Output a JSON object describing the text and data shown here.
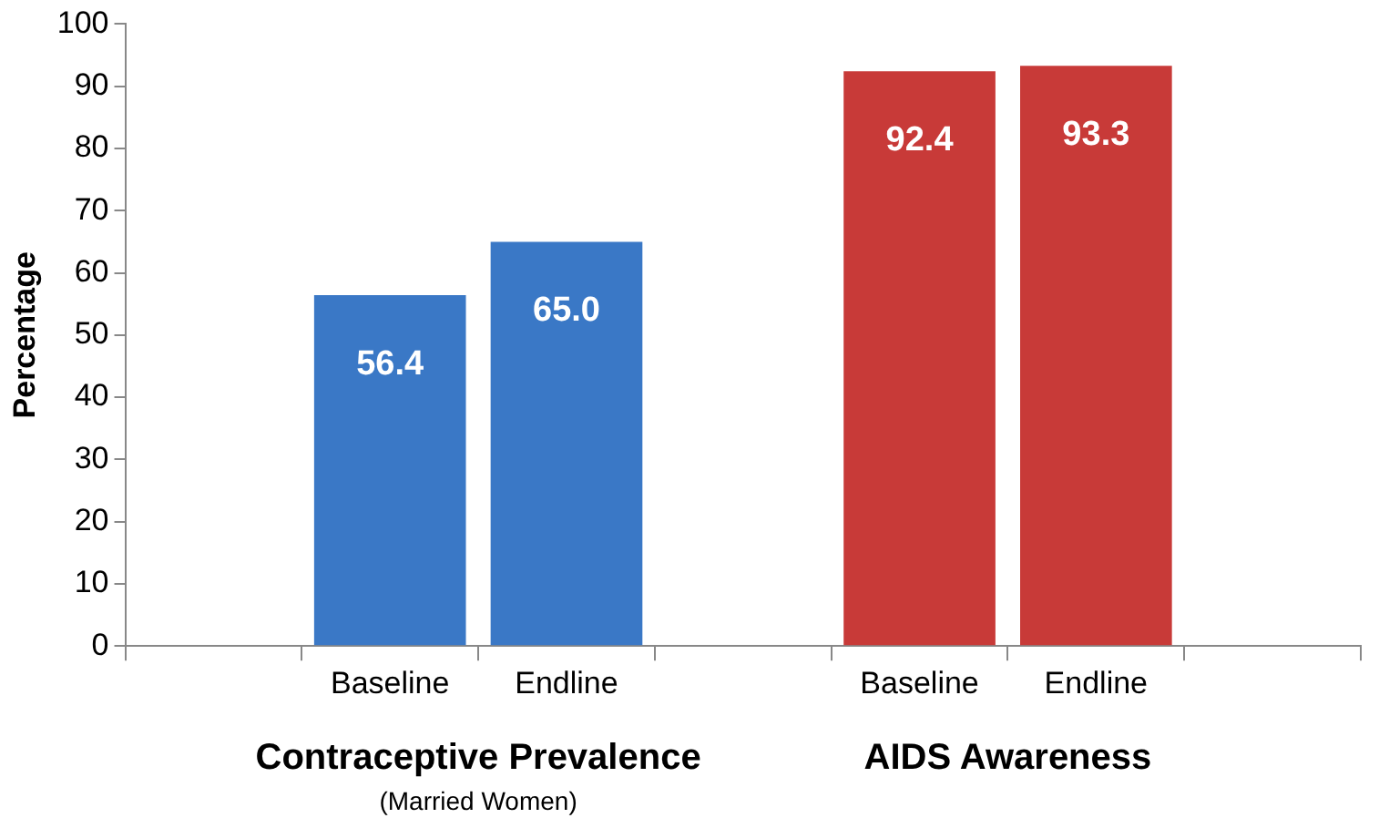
{
  "chart_data": {
    "type": "bar",
    "categories": [
      null,
      "Baseline",
      "Endline",
      null,
      "Baseline",
      "Endline",
      null
    ],
    "values": [
      null,
      56.4,
      65.0,
      null,
      92.4,
      93.3,
      null
    ],
    "colors": [
      "#3a78c6",
      "#3a78c6",
      "#3a78c6",
      "#3a78c6",
      "#c83a38",
      "#c83a38",
      "#c83a38"
    ],
    "ylabel": "Percentage",
    "ylim": [
      0,
      100
    ],
    "yticks": [
      0,
      10,
      20,
      30,
      40,
      50,
      60,
      70,
      80,
      90,
      100
    ],
    "value_labels": [
      null,
      "56.4",
      "65.0",
      null,
      "92.4",
      "93.3",
      null
    ],
    "grid": false,
    "legend": false,
    "annotations": [
      "Contraceptive Prevalence",
      "(Married Women)",
      "AIDS Awareness"
    ]
  }
}
